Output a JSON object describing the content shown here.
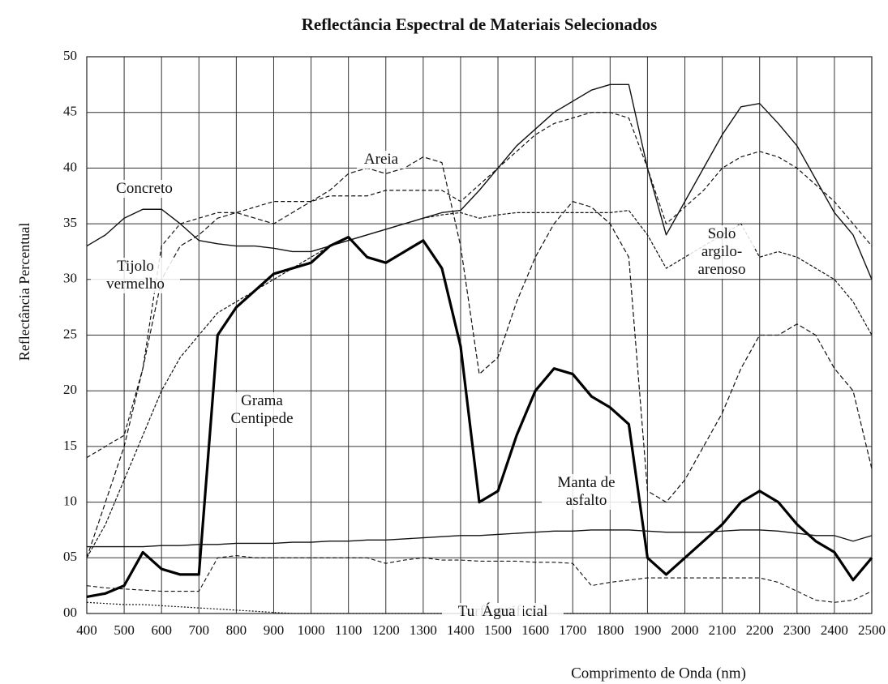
{
  "chart_data": {
    "type": "line",
    "title": "Reflectância Espectral de Materiais Selecionados",
    "x_label": "Comprimento de Onda (nm)",
    "y_label": "Reflectância Percentual",
    "x": [
      400,
      450,
      500,
      550,
      600,
      650,
      700,
      750,
      800,
      850,
      900,
      950,
      1000,
      1050,
      1100,
      1150,
      1200,
      1250,
      1300,
      1350,
      1400,
      1450,
      1500,
      1550,
      1600,
      1650,
      1700,
      1750,
      1800,
      1850,
      1900,
      1950,
      2000,
      2050,
      2100,
      2150,
      2200,
      2250,
      2300,
      2350,
      2400,
      2450,
      2500
    ],
    "xlim": [
      400,
      2500
    ],
    "xticks": [
      400,
      500,
      600,
      700,
      800,
      900,
      1000,
      1100,
      1200,
      1300,
      1400,
      1500,
      1600,
      1700,
      1800,
      1900,
      2000,
      2100,
      2200,
      2300,
      2400,
      2500
    ],
    "ylim": [
      0,
      50
    ],
    "yticks": [
      {
        "value": 0,
        "label": "00"
      },
      {
        "value": 5,
        "label": "05"
      },
      10,
      15,
      20,
      25,
      30,
      35,
      40,
      45,
      50
    ],
    "grid": true,
    "series": [
      {
        "name": "Concreto",
        "color": "#111111",
        "width": 1.4,
        "dash": "none",
        "values": [
          33,
          34,
          35.5,
          36.3,
          36.3,
          35,
          33.5,
          33.2,
          33,
          33,
          32.8,
          32.5,
          32.5,
          33,
          33.5,
          34,
          34.5,
          35,
          35.5,
          36,
          36.2,
          38,
          40,
          42,
          43.5,
          45,
          46,
          47,
          47.5,
          47.5,
          40,
          34,
          37,
          40,
          43,
          45.5,
          45.8,
          44,
          42,
          39,
          36,
          34,
          30
        ]
      },
      {
        "name": "Tijolo vermelho",
        "color": "#111111",
        "width": 1.2,
        "dash": "5,3",
        "values": [
          14,
          15,
          16,
          22,
          33,
          35,
          35.5,
          36,
          36,
          36.5,
          37,
          37,
          37,
          37.5,
          37.5,
          37.5,
          38,
          38,
          38,
          38,
          37,
          38.5,
          40,
          41.5,
          43,
          44,
          44.5,
          45,
          45,
          44.5,
          40,
          35,
          36.5,
          38,
          40,
          41,
          41.5,
          41,
          40,
          38.5,
          37,
          35,
          33
        ]
      },
      {
        "name": "Areia",
        "color": "#111111",
        "width": 1.2,
        "dash": "6,3",
        "values": [
          5,
          10,
          15,
          22,
          30,
          33,
          34,
          35.5,
          36,
          35.5,
          35,
          36,
          37,
          38,
          39.5,
          40,
          39.5,
          40,
          41,
          40.5,
          33,
          21.5,
          23,
          28,
          32,
          35,
          37,
          36.5,
          35,
          32,
          11,
          10,
          12,
          15,
          18,
          22,
          25,
          25,
          26,
          25,
          22,
          20,
          13
        ]
      },
      {
        "name": "Solo argilo-arenoso",
        "color": "#111111",
        "width": 1.2,
        "dash": "4,2",
        "values": [
          5,
          8,
          12,
          16,
          20,
          23,
          25,
          27,
          28,
          29,
          30,
          31,
          32,
          33,
          33.5,
          34,
          34.5,
          35,
          35.5,
          35.8,
          36,
          35.5,
          35.8,
          36,
          36,
          36,
          36,
          36,
          36,
          36.2,
          34,
          31,
          32,
          33,
          34,
          35,
          32,
          32.5,
          32,
          31,
          30,
          28,
          25
        ]
      },
      {
        "name": "Grama Centipede",
        "color": "#000000",
        "width": 3.2,
        "dash": "none",
        "values": [
          1.5,
          1.8,
          2.5,
          5.5,
          4,
          3.5,
          3.5,
          25,
          27.5,
          29,
          30.5,
          31,
          31.5,
          33,
          33.8,
          32,
          31.5,
          32.5,
          33.5,
          31,
          24,
          10,
          11,
          16,
          20,
          22,
          21.5,
          19.5,
          18.5,
          17,
          5,
          3.5,
          5,
          6.5,
          8,
          10,
          11,
          10,
          8,
          6.5,
          5.5,
          3,
          5
        ]
      },
      {
        "name": "Manta de asfalto",
        "color": "#111111",
        "width": 1.3,
        "dash": "none",
        "values": [
          6,
          6,
          6,
          6,
          6.1,
          6.1,
          6.2,
          6.2,
          6.3,
          6.3,
          6.3,
          6.4,
          6.4,
          6.5,
          6.5,
          6.6,
          6.6,
          6.7,
          6.8,
          6.9,
          7,
          7,
          7.1,
          7.2,
          7.3,
          7.4,
          7.4,
          7.5,
          7.5,
          7.5,
          7.4,
          7.3,
          7.3,
          7.3,
          7.4,
          7.5,
          7.5,
          7.4,
          7.2,
          7,
          7,
          6.5,
          7
        ]
      },
      {
        "name": "Turfa artificial",
        "color": "#111111",
        "width": 1.1,
        "dash": "5,3",
        "values": [
          2.5,
          2.3,
          2.2,
          2.1,
          2,
          2,
          2,
          5,
          5.2,
          5,
          5,
          5,
          5,
          5,
          5,
          5,
          4.5,
          4.8,
          5,
          4.8,
          4.8,
          4.7,
          4.7,
          4.7,
          4.6,
          4.6,
          4.5,
          2.5,
          2.8,
          3,
          3.2,
          3.2,
          3.2,
          3.2,
          3.2,
          3.2,
          3.2,
          2.8,
          2,
          1.2,
          1,
          1.2,
          2
        ]
      },
      {
        "name": "Água",
        "color": "#111111",
        "width": 1.2,
        "dash": "2,2",
        "values": [
          1,
          0.9,
          0.8,
          0.8,
          0.7,
          0.6,
          0.5,
          0.4,
          0.3,
          0.2,
          0.1,
          0,
          0,
          0,
          0,
          0,
          0,
          0,
          0,
          0,
          0,
          0,
          0,
          0,
          0,
          0,
          0,
          0,
          0,
          0,
          0,
          0,
          0,
          0,
          0,
          0,
          0,
          0,
          0,
          0,
          0,
          0,
          0
        ]
      }
    ]
  }
}
